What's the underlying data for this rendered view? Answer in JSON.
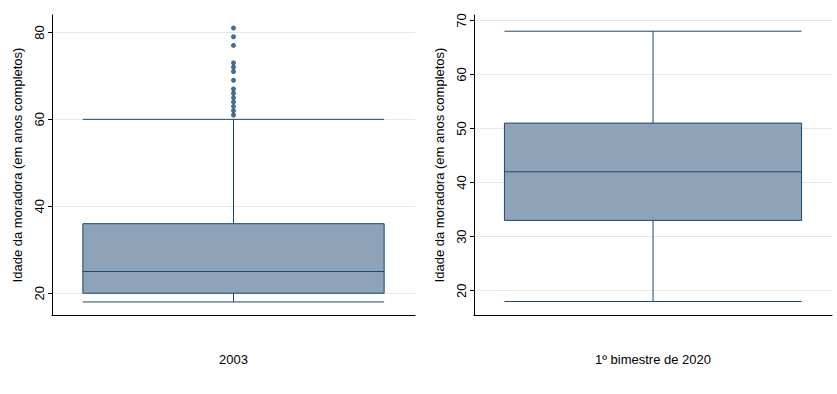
{
  "chart_data": [
    {
      "type": "boxplot",
      "ylabel": "Idade da moradora (em anos completos)",
      "categories": [
        "2003"
      ],
      "boxes": [
        {
          "min": 18,
          "q1": 20,
          "median": 25,
          "q3": 36,
          "max": 60,
          "outliers": [
            61,
            62,
            63,
            64,
            65,
            66,
            67,
            69,
            71,
            72,
            73,
            77,
            79,
            81
          ]
        }
      ],
      "color": "#8ea3b8",
      "ylim": [
        15,
        84
      ],
      "yticks": [
        20,
        40,
        60,
        80
      ],
      "grid": true
    },
    {
      "type": "boxplot",
      "ylabel": "Idade da moradora (em anos completos)",
      "categories": [
        "1º bimestre de 2020"
      ],
      "boxes": [
        {
          "min": 18,
          "q1": 33,
          "median": 42,
          "q3": 51,
          "max": 68,
          "outliers": []
        }
      ],
      "color": "#8ea3b8",
      "ylim": [
        15.5,
        71
      ],
      "yticks": [
        20,
        30,
        40,
        50,
        60,
        70
      ],
      "grid": true
    }
  ]
}
